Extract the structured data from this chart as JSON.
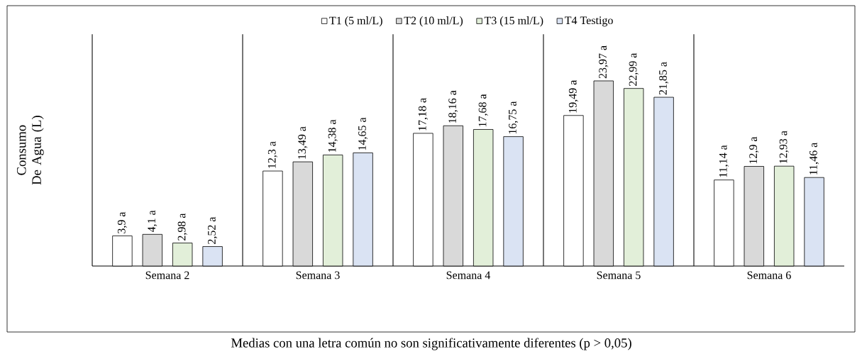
{
  "chart_data": {
    "type": "bar",
    "ylabel": "Consumo De Agua (L)",
    "categories": [
      "Semana 2",
      "Semana 3",
      "Semana 4",
      "Semana 5",
      "Semana 6"
    ],
    "series": [
      {
        "name": "T1 (5 ml/L)",
        "color": "#ffffff",
        "values": [
          3.9,
          12.3,
          17.18,
          19.49,
          11.14
        ],
        "value_labels": [
          "3,9 a",
          "12,3 a",
          "17,18 a",
          "19,49 a",
          "11,14 a"
        ]
      },
      {
        "name": "T2 (10 ml/L)",
        "color": "#d9d9d9",
        "values": [
          4.1,
          13.49,
          18.16,
          23.97,
          12.9
        ],
        "value_labels": [
          "4,1 a",
          "13,49 a",
          "18,16 a",
          "23,97 a",
          "12,9 a"
        ]
      },
      {
        "name": "T3 (15 ml/L)",
        "color": "#e2efd9",
        "values": [
          2.98,
          14.38,
          17.68,
          22.99,
          12.93
        ],
        "value_labels": [
          "2,98 a",
          "14,38 a",
          "17,68 a",
          "22,99 a",
          "12,93 a"
        ]
      },
      {
        "name": "T4 Testigo",
        "color": "#dae3f3",
        "values": [
          2.52,
          14.65,
          16.75,
          21.85,
          11.46
        ],
        "value_labels": [
          "2,52 a",
          "14,65 a",
          "16,75 a",
          "21,85 a",
          "11,46 a"
        ]
      }
    ],
    "ylim": [
      0,
      30
    ],
    "grid": "x",
    "legend": "top",
    "annotations": [
      "Medias con una letra común no son significativamente diferentes (p > 0,05)"
    ]
  }
}
